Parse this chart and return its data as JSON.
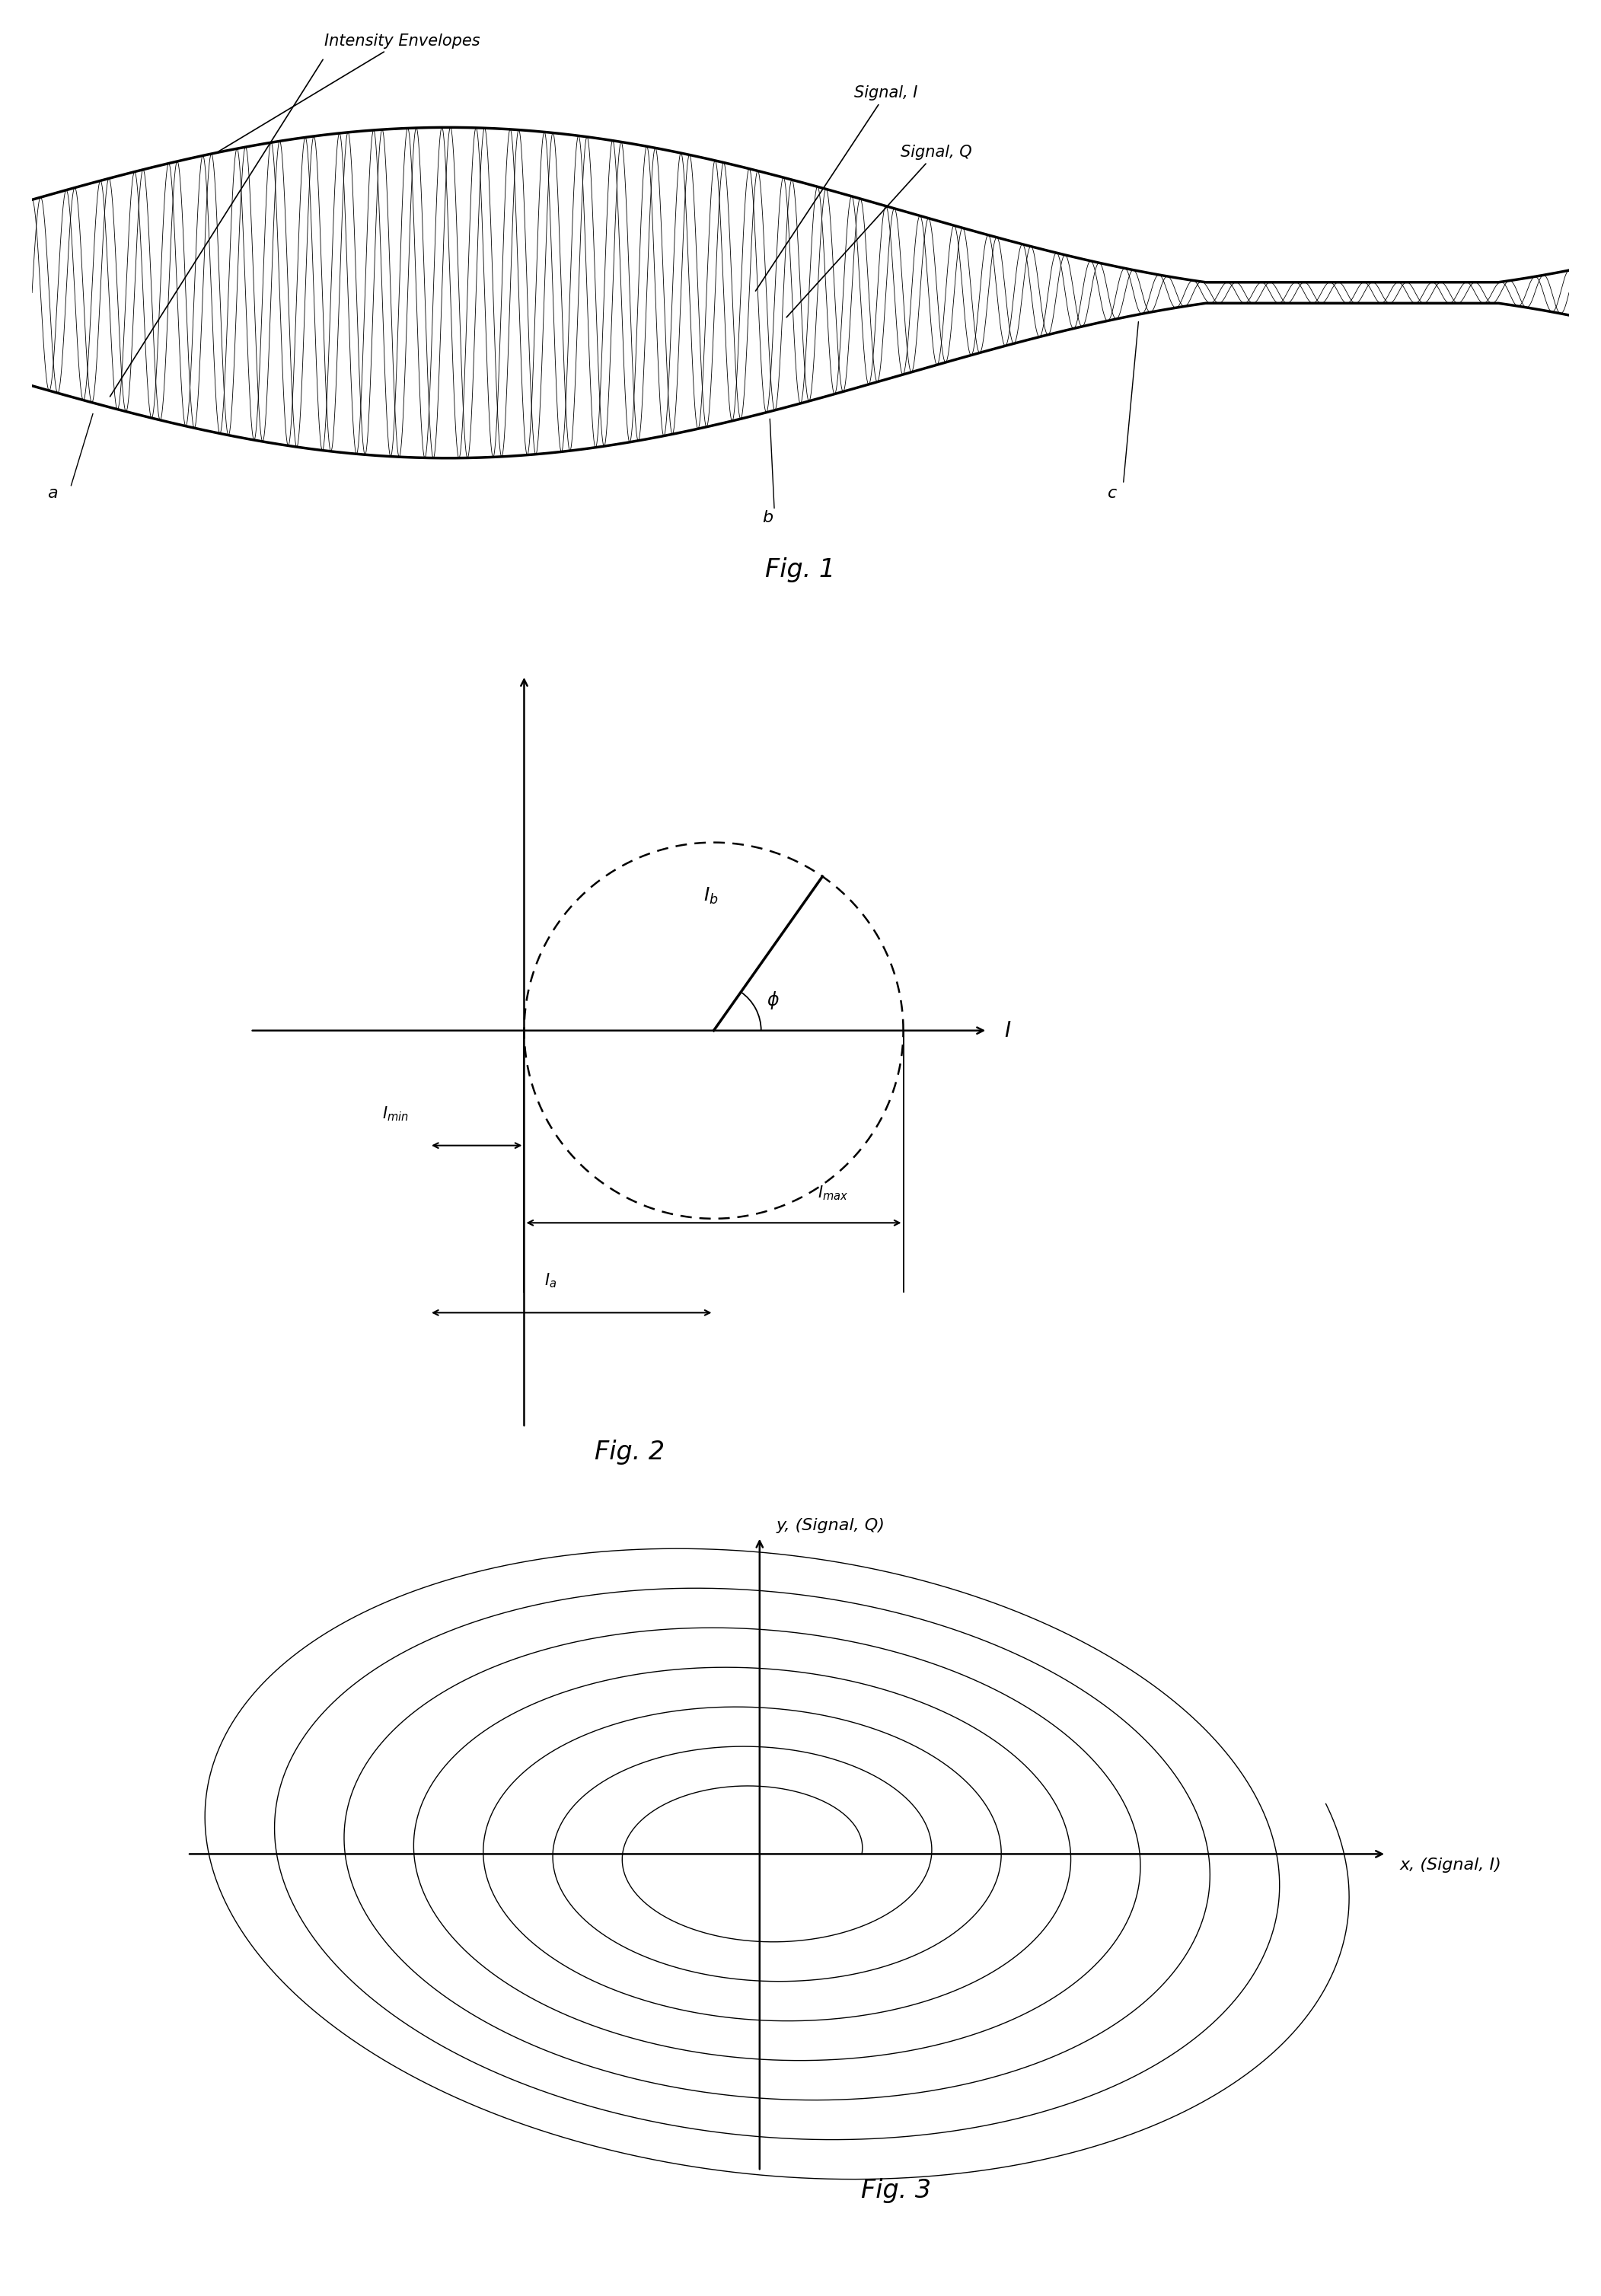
{
  "bg_color": "#ffffff",
  "fig1_title": "Fig. 1",
  "fig2_title": "Fig. 2",
  "fig3_title": "Fig. 3",
  "fig1_label_IE": "Intensity Envelopes",
  "fig1_label_I": "Signal, I",
  "fig1_label_Q": "Signal, Q",
  "fig1_label_a": "a",
  "fig1_label_b": "b",
  "fig1_label_c": "c",
  "fig2_label_Ib": "$I_b$",
  "fig2_label_phi": "$\\phi$",
  "fig2_label_Imin": "$I_{min}$",
  "fig2_label_Imax": "$I_{max}$",
  "fig2_label_Ia": "$I_a$",
  "fig2_label_I": "I",
  "fig3_label_x": "x, (Signal, I)",
  "fig3_label_y": "y, (Signal, Q)"
}
